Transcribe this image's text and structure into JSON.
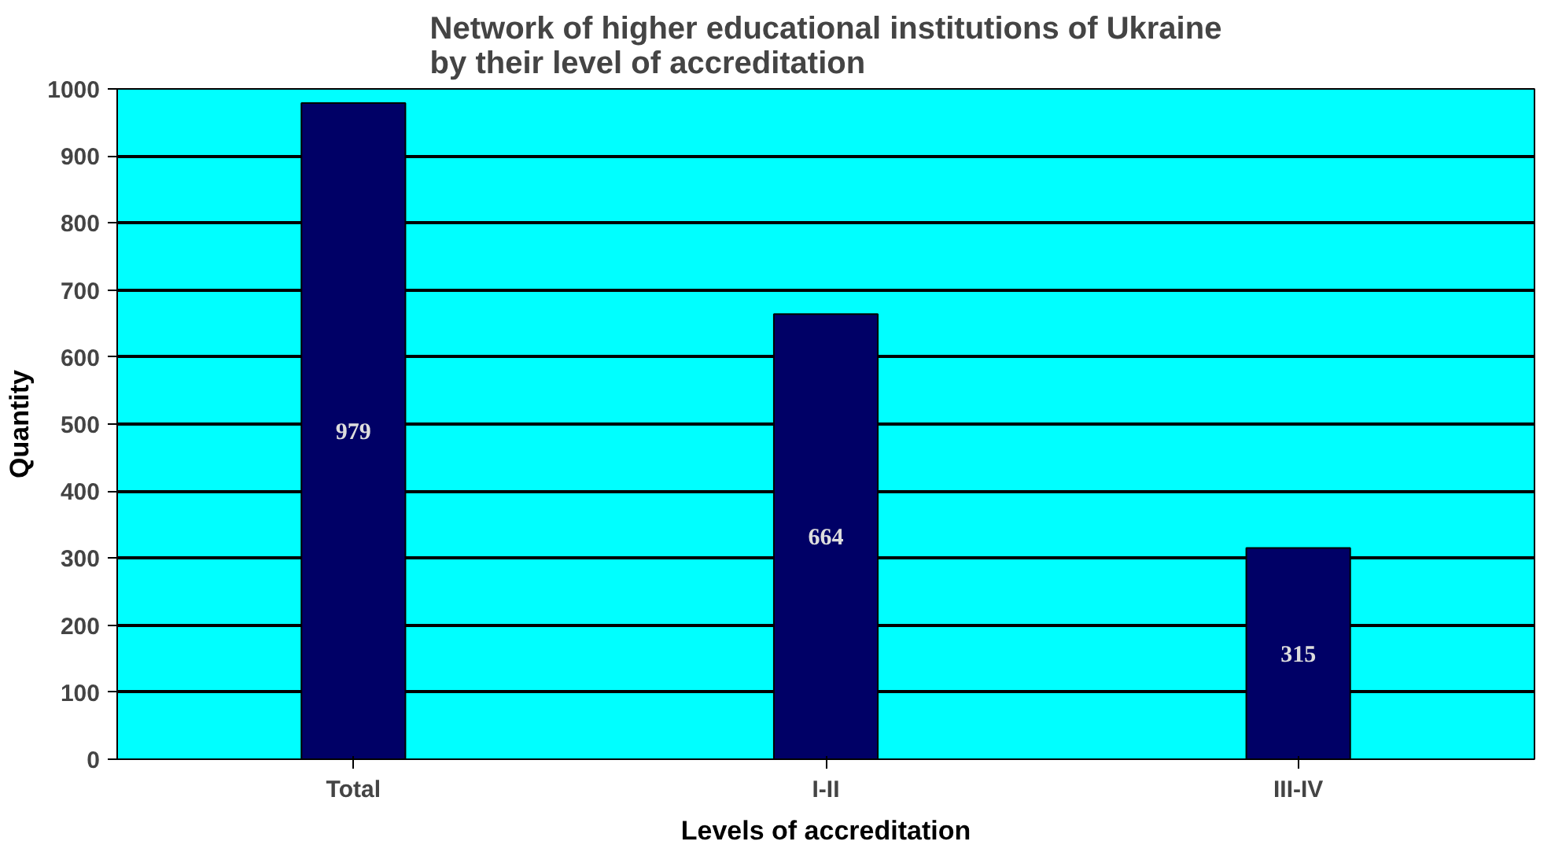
{
  "chart_data": {
    "type": "bar",
    "title": "Network of higher educational institutions of Ukraine\nby their level of accreditation",
    "xlabel": "Levels of accreditation",
    "ylabel": "Quantity",
    "categories": [
      "Total",
      "I-II",
      "III-IV"
    ],
    "values": [
      979,
      664,
      315
    ],
    "color": "#000066",
    "ylim": [
      0,
      1000
    ],
    "yticks": [
      0,
      100,
      200,
      300,
      400,
      500,
      600,
      700,
      800,
      900,
      1000
    ],
    "grid": "y",
    "data_labels": true
  }
}
